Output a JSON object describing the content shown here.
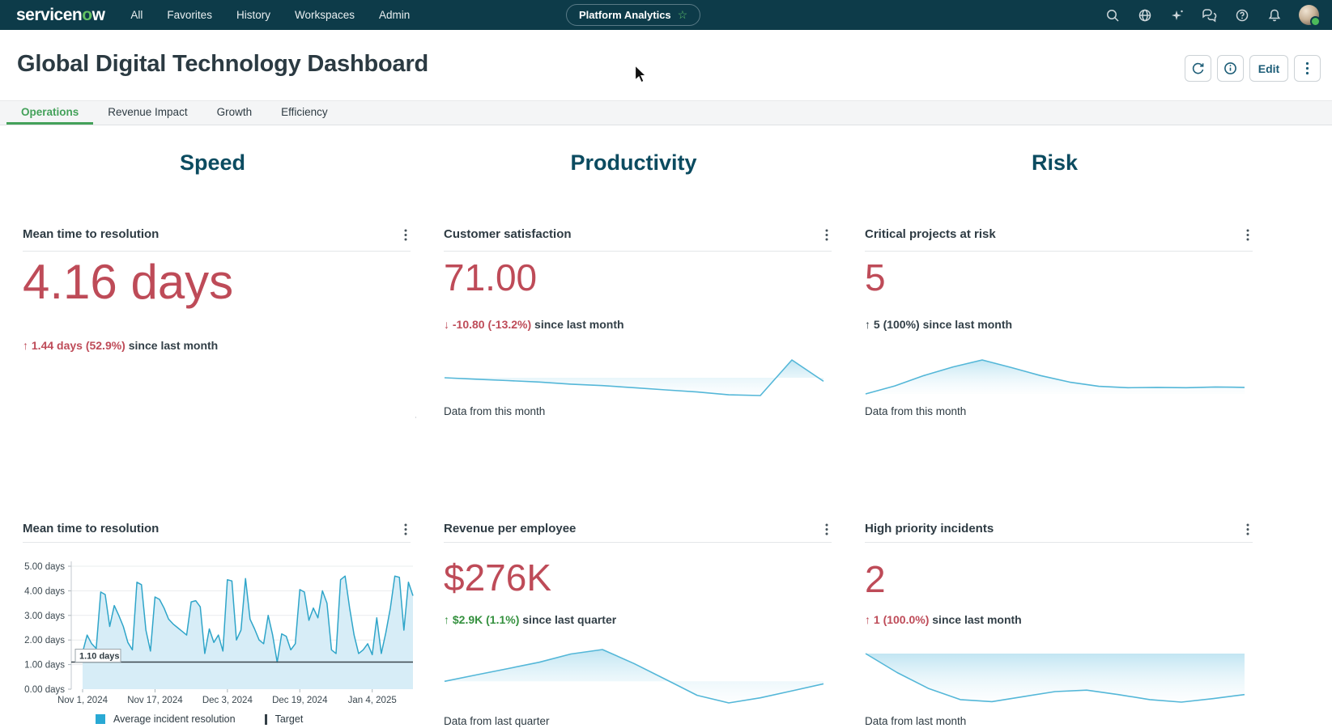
{
  "nav": {
    "logo": {
      "part1": "servicen",
      "part2": "o",
      "part3": "w"
    },
    "items": [
      "All",
      "Favorites",
      "History",
      "Workspaces",
      "Admin"
    ],
    "pill_label": "Platform Analytics",
    "pill_star": "☆"
  },
  "header": {
    "title": "Global Digital Technology Dashboard",
    "edit_label": "Edit"
  },
  "tabs": {
    "items": [
      {
        "label": "Operations",
        "active": true
      },
      {
        "label": "Revenue Impact",
        "active": false
      },
      {
        "label": "Growth",
        "active": false
      },
      {
        "label": "Efficiency",
        "active": false
      }
    ]
  },
  "columns": {
    "col1": "Speed",
    "col2": "Productivity",
    "col3": "Risk"
  },
  "cards": {
    "mttr_score": {
      "title": "Mean time to resolution",
      "value": "4.16 days",
      "delta": "↑ 1.44 days (52.9%)",
      "delta_suffix": " since last month"
    },
    "csat": {
      "title": "Customer satisfaction",
      "value": "71.00",
      "delta": "↓ -10.80 (-13.2%)",
      "delta_suffix": " since last month",
      "caption": "Data from this month"
    },
    "critical_projects": {
      "title": "Critical projects at risk",
      "value": "5",
      "delta": "↑ 5 (100%)",
      "delta_suffix": " since last month",
      "caption": "Data from this month"
    },
    "mttr_trend": {
      "title": "Mean time to resolution"
    },
    "revenue": {
      "title": "Revenue per employee",
      "value": "$276K",
      "delta": "↑ $2.9K (1.1%)",
      "delta_suffix": " since last quarter",
      "caption": "Data from last quarter"
    },
    "high_priority": {
      "title": "High priority incidents",
      "value": "2",
      "delta": "↑ 1 (100.0%)",
      "delta_suffix": " since last month",
      "caption": "Data from last month"
    }
  },
  "colors": {
    "nav_bg": "#0d3b49",
    "heading_teal": "#0b4b60",
    "metric_red": "#be4b58",
    "delta_green": "#35913f",
    "tab_green": "#44a15a",
    "spark_line": "#54b7d8",
    "chart_line": "#2fa5c9",
    "chart_fill": "#d7edf7",
    "target_line": "#3a464d",
    "legend_blue": "#29a9d4"
  },
  "chart_data": [
    {
      "id": "mttr_trend",
      "type": "area",
      "title": "Mean time to resolution",
      "ylabel": "days",
      "ylim": [
        0,
        5
      ],
      "grid": true,
      "y_ticks": [
        "0.00 days",
        "1.00 days",
        "2.00 days",
        "3.00 days",
        "4.00 days",
        "5.00 days"
      ],
      "x_ticks": [
        "Nov 1, 2024",
        "Nov 17, 2024",
        "Dec 3, 2024",
        "Dec 19, 2024",
        "Jan 4, 2025"
      ],
      "x_tick_day_index": [
        0,
        16,
        32,
        48,
        64
      ],
      "target": {
        "value": 1.1,
        "label": "1.10 days"
      },
      "legend": [
        {
          "label": "Average incident resolution",
          "shape": "square"
        },
        {
          "label": "Target",
          "shape": "bar"
        }
      ],
      "series": [
        {
          "name": "Average incident resolution",
          "values": [
            1.5,
            2.2,
            1.85,
            1.65,
            3.95,
            3.85,
            2.55,
            3.4,
            3.0,
            2.55,
            1.9,
            1.6,
            4.35,
            4.25,
            2.4,
            1.55,
            3.75,
            3.65,
            3.3,
            2.85,
            2.65,
            2.5,
            2.35,
            2.2,
            3.55,
            3.6,
            3.35,
            1.45,
            2.45,
            1.9,
            2.2,
            1.55,
            4.45,
            4.4,
            2.0,
            2.4,
            4.5,
            2.85,
            2.45,
            2.0,
            1.85,
            3.0,
            2.2,
            1.1,
            2.25,
            2.15,
            1.6,
            1.85,
            4.05,
            3.95,
            2.8,
            3.3,
            2.9,
            4.0,
            3.5,
            1.6,
            1.45,
            4.45,
            4.6,
            3.3,
            2.2,
            1.45,
            1.6,
            1.85,
            1.4,
            2.9,
            1.45,
            2.3,
            3.3,
            4.6,
            4.55,
            2.4,
            4.35,
            3.8
          ]
        }
      ]
    },
    {
      "id": "spark_csat",
      "type": "line",
      "values": [
        55,
        53,
        51,
        49,
        46,
        44,
        41,
        38,
        35,
        31,
        30,
        80,
        50
      ]
    },
    {
      "id": "spark_critical",
      "type": "line",
      "values": [
        2,
        25,
        55,
        80,
        100,
        78,
        55,
        36,
        24,
        20,
        21,
        20,
        22,
        21
      ]
    },
    {
      "id": "spark_revenue",
      "type": "line",
      "values": [
        42,
        52,
        62,
        72,
        85,
        92,
        70,
        45,
        20,
        8,
        16,
        27,
        38
      ]
    },
    {
      "id": "spark_high_priority",
      "type": "line",
      "values": [
        100,
        62,
        30,
        8,
        4,
        14,
        24,
        27,
        18,
        8,
        3,
        10,
        18
      ]
    }
  ]
}
